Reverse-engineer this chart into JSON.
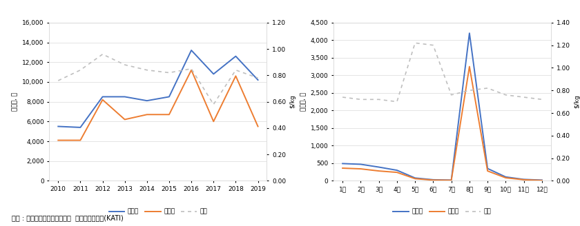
{
  "chart1": {
    "years": [
      2010,
      2011,
      2012,
      2013,
      2014,
      2015,
      2016,
      2017,
      2018,
      2019
    ],
    "import_volume": [
      5500,
      5400,
      8500,
      8500,
      8100,
      8500,
      13200,
      10800,
      12600,
      10200
    ],
    "import_value": [
      4100,
      4100,
      8200,
      6200,
      6700,
      6700,
      11200,
      6000,
      10600,
      5500
    ],
    "unit_price": [
      0.76,
      0.84,
      0.96,
      0.88,
      0.84,
      0.82,
      0.85,
      0.58,
      0.84,
      0.78
    ],
    "ylim_left": [
      0,
      16000
    ],
    "ylim_right": [
      0.0,
      1.2
    ],
    "ylabel_left": "천달러, 톤",
    "ylabel_right": "$/kg",
    "yticks_left": [
      0,
      2000,
      4000,
      6000,
      8000,
      10000,
      12000,
      14000,
      16000
    ],
    "yticks_right": [
      0.0,
      0.2,
      0.4,
      0.6,
      0.8,
      1.0,
      1.2
    ]
  },
  "chart2": {
    "months": [
      "1월",
      "2월",
      "3월",
      "4월",
      "5월",
      "6월",
      "7월",
      "8월",
      "9월",
      "10월",
      "11월",
      "12월"
    ],
    "import_volume": [
      490,
      470,
      390,
      300,
      80,
      30,
      20,
      4200,
      350,
      110,
      40,
      20
    ],
    "import_value": [
      360,
      340,
      280,
      240,
      60,
      20,
      15,
      3250,
      280,
      85,
      30,
      10
    ],
    "unit_price": [
      0.74,
      0.72,
      0.72,
      0.7,
      1.22,
      1.2,
      0.76,
      0.8,
      0.82,
      0.76,
      0.74,
      0.72
    ],
    "ylim_left": [
      0,
      4500
    ],
    "ylim_right": [
      0.0,
      1.4
    ],
    "ylabel_left": "천달러, 톤",
    "ylabel_right": "$/kg",
    "yticks_left": [
      0,
      500,
      1000,
      1500,
      2000,
      2500,
      3000,
      3500,
      4000,
      4500
    ],
    "yticks_right": [
      0.0,
      0.2,
      0.4,
      0.6,
      0.8,
      1.0,
      1.2,
      1.4
    ]
  },
  "legend_labels": [
    "수입량",
    "수입액",
    "단가"
  ],
  "source_text": "출처 : 한국농수산식품유통공사  농식품수출정보(KATI)",
  "line_colors": [
    "#4472C4",
    "#ED7D31"
  ],
  "dotted_color": "#BFBFBF",
  "bg_color": "#FFFFFF",
  "grid_color": "#D9D9D9"
}
